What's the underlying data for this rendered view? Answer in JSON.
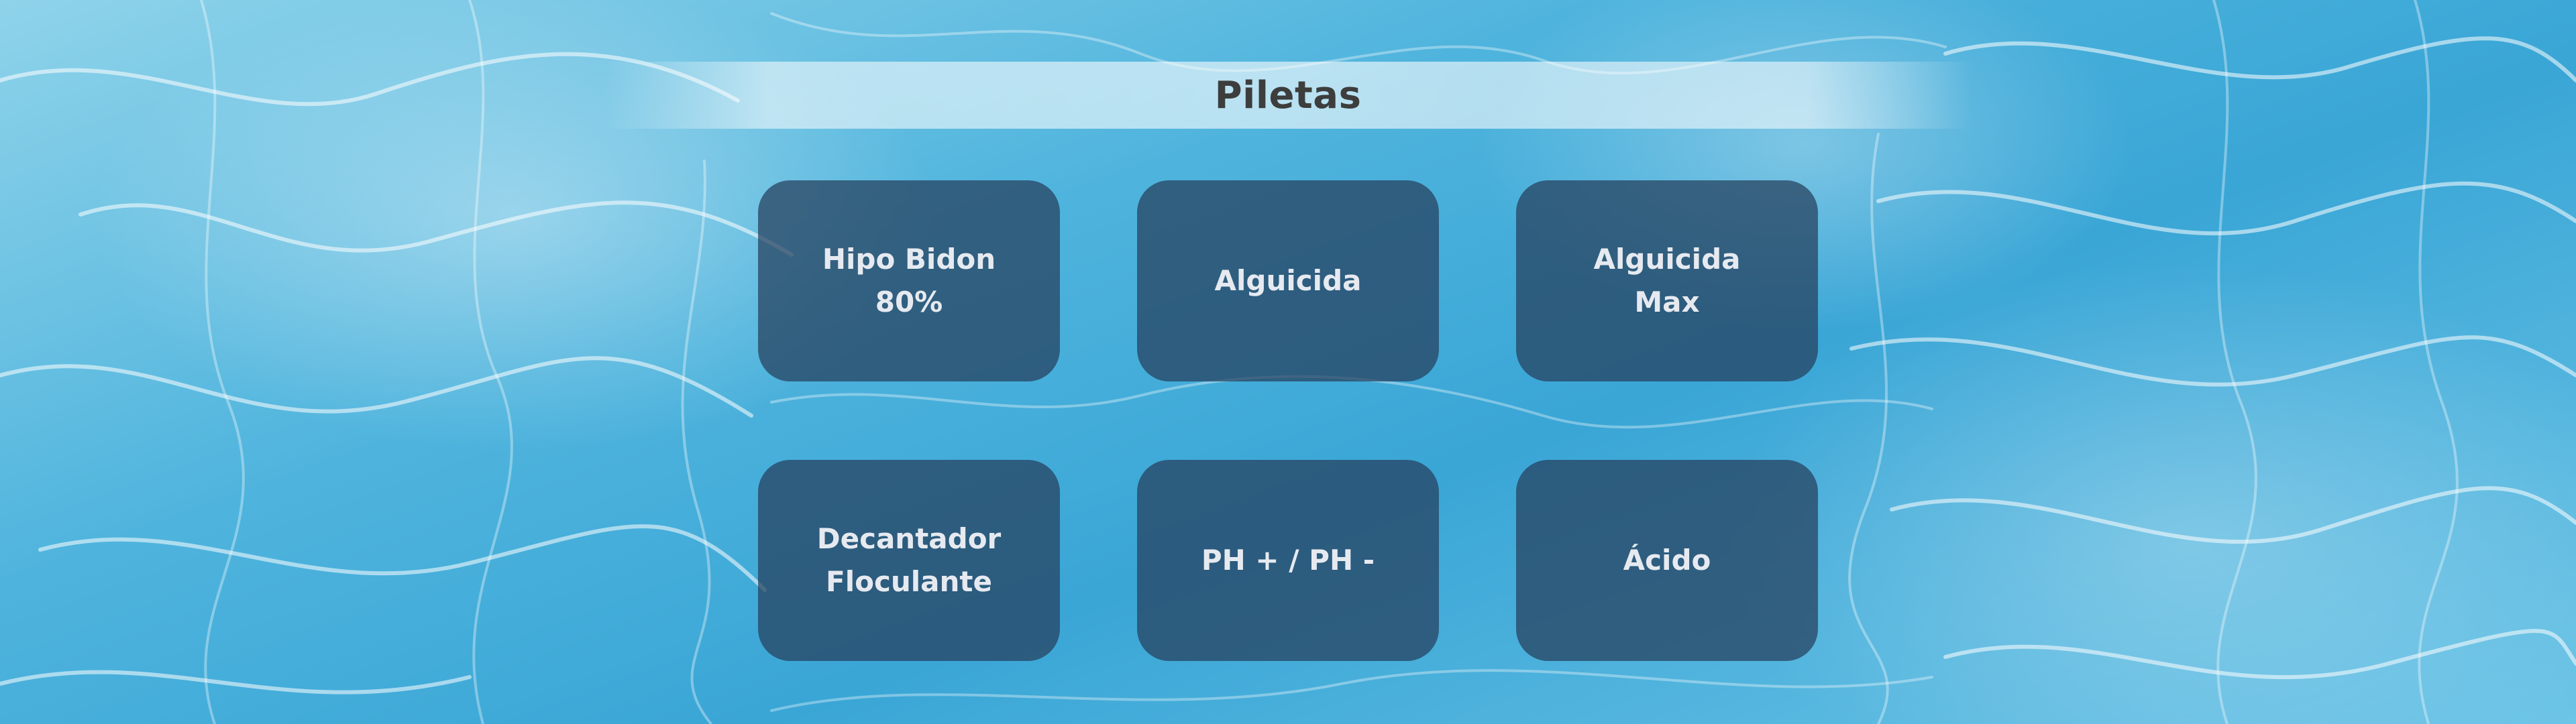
{
  "page": {
    "title": "Piletas"
  },
  "background": {
    "name": "pool-water-background",
    "colors": [
      "#8fd3ea",
      "#4fb4dd",
      "#3aa6d6",
      "#6cc4e6"
    ]
  },
  "cards": [
    {
      "label": "Hipo Bidon\n80%"
    },
    {
      "label": "Alguicida"
    },
    {
      "label": "Alguicida\nMax"
    },
    {
      "label": "Decantador\nFloculante"
    },
    {
      "label": "PH + / PH -"
    },
    {
      "label": "Ácido"
    }
  ],
  "colors": {
    "card_background": "#263e5c",
    "card_text": "#e6eaf0",
    "title_text": "#3d3d3d"
  }
}
